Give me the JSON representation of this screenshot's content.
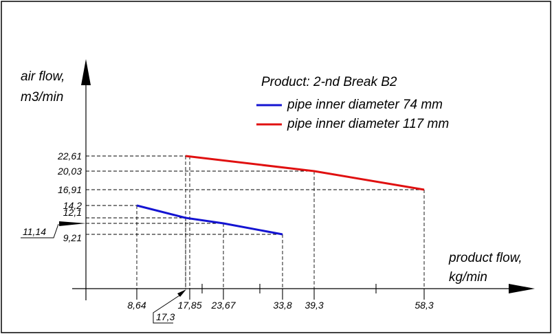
{
  "chart_data": {
    "type": "line",
    "ylabel": [
      "air flow,",
      "m3/min"
    ],
    "xlabel": [
      "product flow,",
      "kg/min"
    ],
    "title": "Product: 2-nd Break B2",
    "series": [
      {
        "name": "pipe inner diameter 74 mm",
        "color": "#1414d2",
        "x": [
          8.64,
          17.3,
          23.67,
          33.8
        ],
        "y": [
          14.2,
          12.1,
          11.14,
          9.21
        ]
      },
      {
        "name": "pipe inner diameter 117 mm",
        "color": "#e01010",
        "x": [
          17.3,
          39.3,
          58.3
        ],
        "y": [
          22.61,
          20.03,
          16.91
        ]
      }
    ],
    "x_tick_labels": [
      {
        "value": 8.64,
        "label": "8,64"
      },
      {
        "value": 17.85,
        "label": "17,85"
      },
      {
        "value": 23.67,
        "label": "23,67"
      },
      {
        "value": 33.8,
        "label": "33,8"
      },
      {
        "value": 39.3,
        "label": "39,3"
      },
      {
        "value": 58.3,
        "label": "58,3"
      }
    ],
    "x_callout": {
      "value": 17.3,
      "label": "17,3"
    },
    "y_tick_labels": [
      {
        "value": 22.61,
        "label": "22,61"
      },
      {
        "value": 20.03,
        "label": "20,03"
      },
      {
        "value": 16.91,
        "label": "16,91"
      },
      {
        "value": 14.2,
        "label": "14,2"
      },
      {
        "value": 12.1,
        "label": "12,1"
      },
      {
        "value": 9.21,
        "label": "9,21"
      }
    ],
    "y_callout": {
      "value": 11.14,
      "label": "11,14"
    },
    "minor_x_ticks": [
      20,
      30,
      50
    ]
  }
}
